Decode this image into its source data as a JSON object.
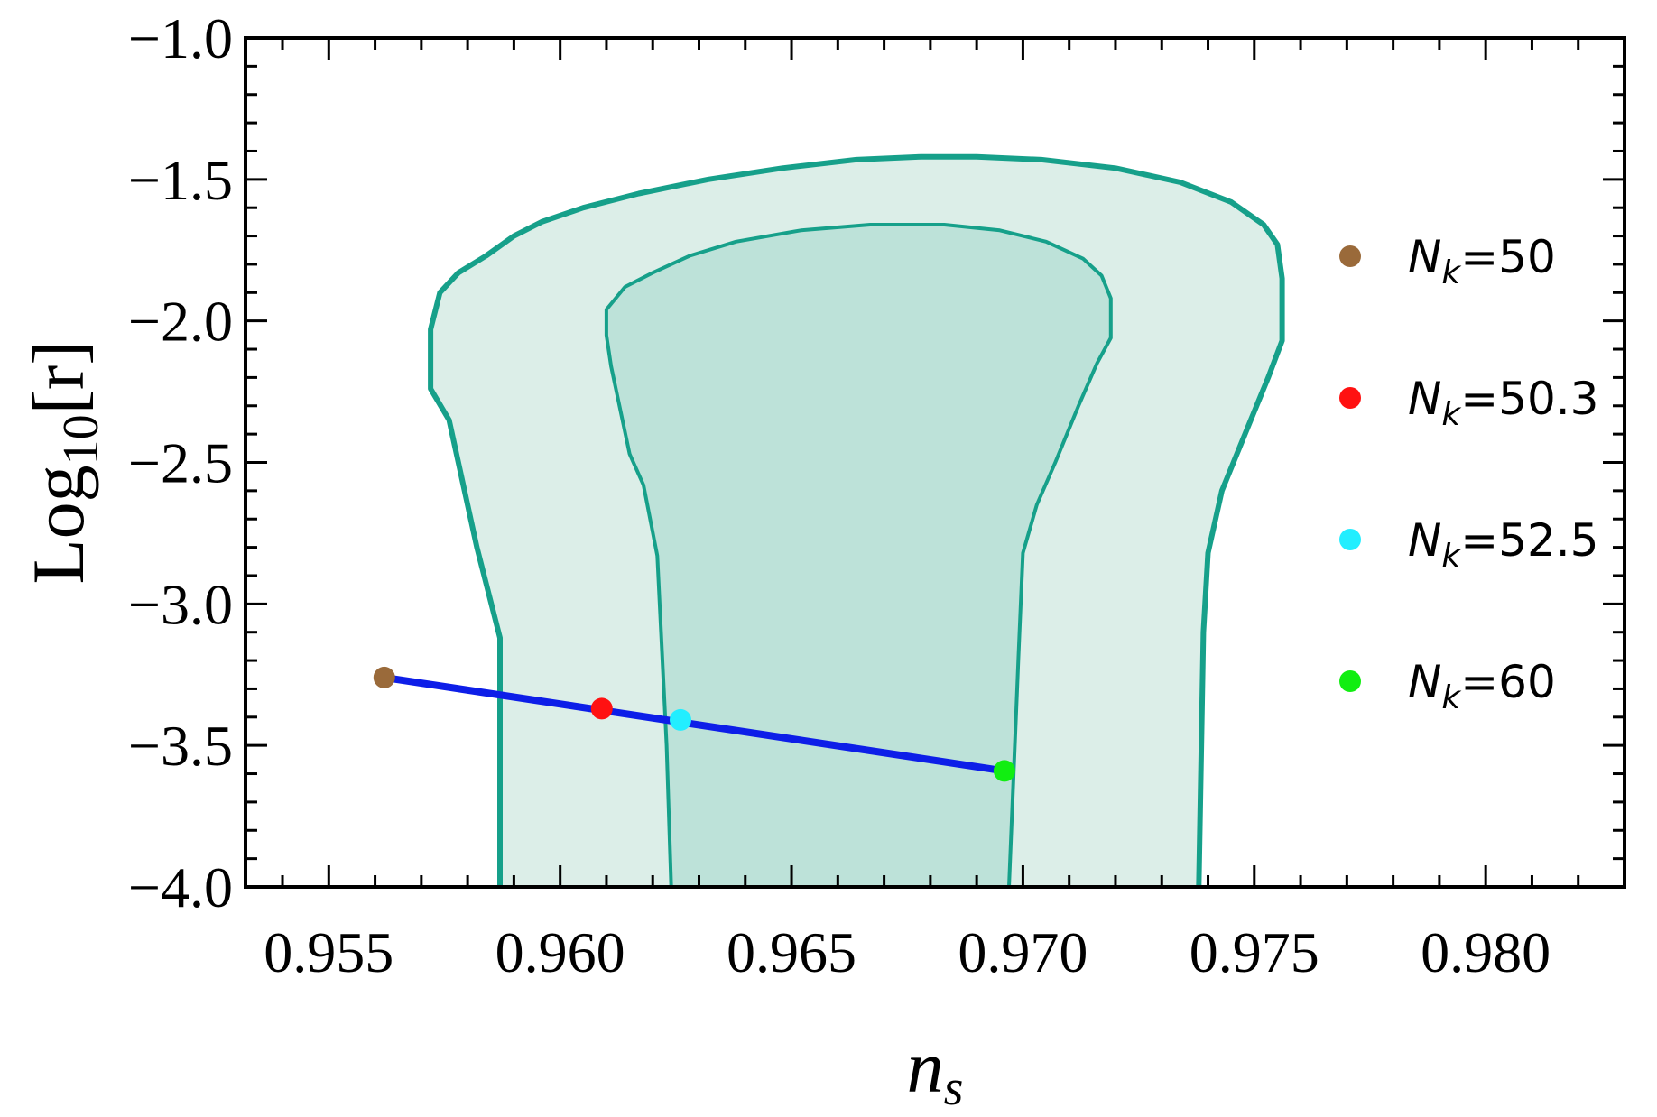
{
  "chart_data": {
    "type": "line",
    "xlabel": {
      "base": "n",
      "sub": "s"
    },
    "ylabel": {
      "prefix": "Log",
      "sub": "10",
      "suffix": "[r]"
    },
    "xlim": [
      0.9532,
      0.983
    ],
    "ylim": [
      -4.0,
      -1.0
    ],
    "x_ticks": [
      {
        "value": 0.955,
        "label": "0.955"
      },
      {
        "value": 0.96,
        "label": "0.960"
      },
      {
        "value": 0.965,
        "label": "0.965"
      },
      {
        "value": 0.97,
        "label": "0.970"
      },
      {
        "value": 0.975,
        "label": "0.975"
      },
      {
        "value": 0.98,
        "label": "0.980"
      }
    ],
    "y_ticks": [
      {
        "value": -1.0,
        "label": "−1.0"
      },
      {
        "value": -1.5,
        "label": "−1.5"
      },
      {
        "value": -2.0,
        "label": "−2.0"
      },
      {
        "value": -2.5,
        "label": "−2.5"
      },
      {
        "value": -3.0,
        "label": "−3.0"
      },
      {
        "value": -3.5,
        "label": "−3.5"
      },
      {
        "value": -4.0,
        "label": "−4.0"
      }
    ],
    "x_minor_step": 0.001,
    "y_minor_step": 0.1,
    "contours": [
      {
        "name": "outer",
        "fill": "#dceee8",
        "stroke": "#16a08a",
        "points": [
          [
            0.9587,
            -4.0
          ],
          [
            0.9587,
            -3.12
          ],
          [
            0.9582,
            -2.8
          ],
          [
            0.9576,
            -2.35
          ],
          [
            0.9572,
            -2.24
          ],
          [
            0.9572,
            -2.03
          ],
          [
            0.9574,
            -1.9
          ],
          [
            0.9578,
            -1.83
          ],
          [
            0.9584,
            -1.77
          ],
          [
            0.959,
            -1.7
          ],
          [
            0.9596,
            -1.65
          ],
          [
            0.9605,
            -1.6
          ],
          [
            0.9617,
            -1.55
          ],
          [
            0.9632,
            -1.5
          ],
          [
            0.9648,
            -1.46
          ],
          [
            0.9664,
            -1.43
          ],
          [
            0.9678,
            -1.42
          ],
          [
            0.969,
            -1.42
          ],
          [
            0.9704,
            -1.43
          ],
          [
            0.972,
            -1.46
          ],
          [
            0.9734,
            -1.51
          ],
          [
            0.9745,
            -1.58
          ],
          [
            0.9752,
            -1.66
          ],
          [
            0.9755,
            -1.73
          ],
          [
            0.9756,
            -1.85
          ],
          [
            0.9756,
            -2.07
          ],
          [
            0.9753,
            -2.2
          ],
          [
            0.9748,
            -2.4
          ],
          [
            0.9743,
            -2.6
          ],
          [
            0.974,
            -2.82
          ],
          [
            0.9739,
            -3.1
          ],
          [
            0.9738,
            -4.0
          ]
        ]
      },
      {
        "name": "inner",
        "fill": "#bde2d9",
        "stroke": "#16a08a",
        "points": [
          [
            0.9624,
            -4.0
          ],
          [
            0.9623,
            -3.5
          ],
          [
            0.9621,
            -2.83
          ],
          [
            0.9618,
            -2.58
          ],
          [
            0.9615,
            -2.47
          ],
          [
            0.9611,
            -2.16
          ],
          [
            0.961,
            -2.05
          ],
          [
            0.961,
            -1.96
          ],
          [
            0.9614,
            -1.88
          ],
          [
            0.962,
            -1.83
          ],
          [
            0.9628,
            -1.77
          ],
          [
            0.9638,
            -1.72
          ],
          [
            0.9652,
            -1.68
          ],
          [
            0.9667,
            -1.66
          ],
          [
            0.9683,
            -1.66
          ],
          [
            0.9695,
            -1.68
          ],
          [
            0.9705,
            -1.72
          ],
          [
            0.9713,
            -1.78
          ],
          [
            0.9717,
            -1.84
          ],
          [
            0.9719,
            -1.92
          ],
          [
            0.9719,
            -2.06
          ],
          [
            0.9716,
            -2.15
          ],
          [
            0.9712,
            -2.3
          ],
          [
            0.9707,
            -2.5
          ],
          [
            0.9703,
            -2.65
          ],
          [
            0.97,
            -2.82
          ],
          [
            0.9699,
            -3.2
          ],
          [
            0.9697,
            -4.0
          ]
        ]
      }
    ],
    "series": [
      {
        "name": "trajectory",
        "color": "#0d1ee8",
        "x": [
          0.9562,
          0.9696
        ],
        "y": [
          -3.26,
          -3.59
        ]
      }
    ],
    "points": [
      {
        "name": "N_k=50",
        "label_base": "N",
        "label_sub": "k",
        "label_value": "=50",
        "x": 0.9562,
        "y": -3.26,
        "color": "#9a6a3a"
      },
      {
        "name": "N_k=50.3",
        "label_base": "N",
        "label_sub": "k",
        "label_value": "=50.3",
        "x": 0.9609,
        "y": -3.37,
        "color": "#ff1111"
      },
      {
        "name": "N_k=52.5",
        "label_base": "N",
        "label_sub": "k",
        "label_value": "=52.5",
        "x": 0.9626,
        "y": -3.41,
        "color": "#22eeff"
      },
      {
        "name": "N_k=60",
        "label_base": "N",
        "label_sub": "k",
        "label_value": "=60",
        "x": 0.9696,
        "y": -3.59,
        "color": "#11ee11"
      }
    ],
    "legend": {
      "position": "right"
    }
  }
}
